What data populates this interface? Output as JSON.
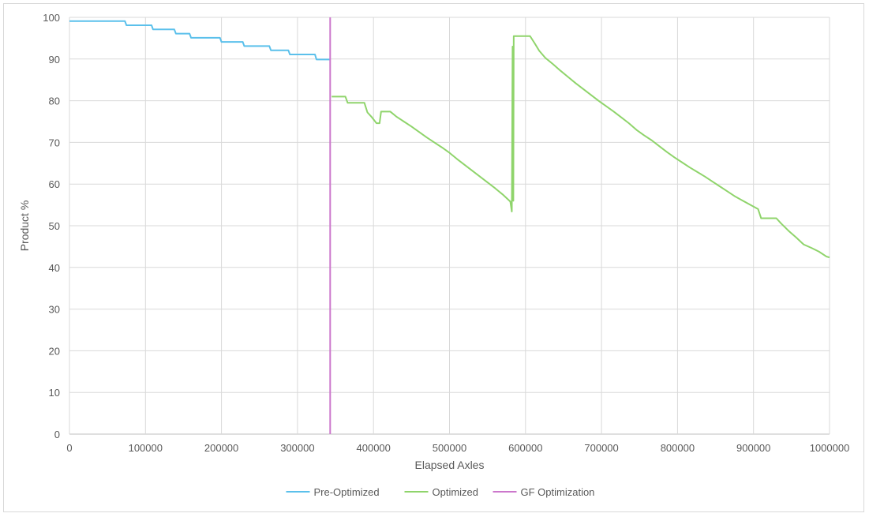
{
  "chart_data": {
    "type": "line",
    "xlabel": "Elapsed Axles",
    "ylabel": "Product %",
    "xlim": [
      0,
      1000000
    ],
    "ylim": [
      0,
      100
    ],
    "xticks": [
      0,
      100000,
      200000,
      300000,
      400000,
      500000,
      600000,
      700000,
      800000,
      900000,
      1000000
    ],
    "yticks": [
      0,
      10,
      20,
      30,
      40,
      50,
      60,
      70,
      80,
      90,
      100
    ],
    "grid": true,
    "legend_position": "bottom",
    "series": [
      {
        "name": "Pre-Optimized",
        "color": "#5bc0eb",
        "style": "step",
        "points": [
          [
            0,
            99.1
          ],
          [
            73000,
            99.1
          ],
          [
            75000,
            98.1
          ],
          [
            108000,
            98.1
          ],
          [
            110000,
            97.1
          ],
          [
            138000,
            97.1
          ],
          [
            140000,
            96.1
          ],
          [
            158000,
            96.1
          ],
          [
            160000,
            95.1
          ],
          [
            198000,
            95.1
          ],
          [
            200000,
            94.1
          ],
          [
            228000,
            94.1
          ],
          [
            230000,
            93.1
          ],
          [
            263000,
            93.1
          ],
          [
            265000,
            92.1
          ],
          [
            288000,
            92.1
          ],
          [
            290000,
            91.1
          ],
          [
            323000,
            91.1
          ],
          [
            325000,
            89.9
          ],
          [
            343000,
            89.9
          ]
        ]
      },
      {
        "name": "Optimized",
        "color": "#8fd46b",
        "style": "line",
        "points": [
          [
            345000,
            81.0
          ],
          [
            363000,
            81.0
          ],
          [
            366000,
            79.5
          ],
          [
            388000,
            79.5
          ],
          [
            392000,
            77.2
          ],
          [
            398000,
            76.0
          ],
          [
            404000,
            74.6
          ],
          [
            408000,
            74.6
          ],
          [
            410000,
            77.4
          ],
          [
            422000,
            77.4
          ],
          [
            430000,
            76.2
          ],
          [
            440000,
            75.0
          ],
          [
            450000,
            73.8
          ],
          [
            460000,
            72.5
          ],
          [
            470000,
            71.2
          ],
          [
            480000,
            70.0
          ],
          [
            490000,
            68.8
          ],
          [
            500000,
            67.5
          ],
          [
            510000,
            66.0
          ],
          [
            520000,
            64.6
          ],
          [
            530000,
            63.2
          ],
          [
            540000,
            61.8
          ],
          [
            550000,
            60.4
          ],
          [
            560000,
            59.0
          ],
          [
            570000,
            57.5
          ],
          [
            580000,
            55.8
          ],
          [
            582000,
            53.4
          ],
          [
            583000,
            93.0
          ],
          [
            584000,
            56.0
          ],
          [
            584500,
            95.5
          ],
          [
            606000,
            95.5
          ],
          [
            612000,
            93.8
          ],
          [
            618000,
            92.0
          ],
          [
            626000,
            90.3
          ],
          [
            636000,
            88.8
          ],
          [
            646000,
            87.2
          ],
          [
            656000,
            85.7
          ],
          [
            666000,
            84.2
          ],
          [
            676000,
            82.8
          ],
          [
            686000,
            81.4
          ],
          [
            696000,
            80.0
          ],
          [
            706000,
            78.7
          ],
          [
            716000,
            77.4
          ],
          [
            726000,
            76.0
          ],
          [
            736000,
            74.6
          ],
          [
            746000,
            73.0
          ],
          [
            756000,
            71.7
          ],
          [
            766000,
            70.5
          ],
          [
            776000,
            69.1
          ],
          [
            786000,
            67.7
          ],
          [
            796000,
            66.4
          ],
          [
            806000,
            65.2
          ],
          [
            816000,
            64.0
          ],
          [
            826000,
            62.9
          ],
          [
            836000,
            61.8
          ],
          [
            846000,
            60.6
          ],
          [
            856000,
            59.4
          ],
          [
            866000,
            58.2
          ],
          [
            876000,
            57.0
          ],
          [
            886000,
            56.0
          ],
          [
            896000,
            55.0
          ],
          [
            906000,
            54.0
          ],
          [
            910000,
            51.8
          ],
          [
            930000,
            51.8
          ],
          [
            936000,
            50.6
          ],
          [
            946000,
            48.8
          ],
          [
            956000,
            47.2
          ],
          [
            966000,
            45.5
          ],
          [
            976000,
            44.7
          ],
          [
            986000,
            43.8
          ],
          [
            996000,
            42.6
          ],
          [
            1000000,
            42.4
          ]
        ]
      },
      {
        "name": "GF Optimization",
        "color": "#cc77cc",
        "style": "vertical",
        "points": [
          [
            343000,
            0
          ],
          [
            343000,
            100
          ]
        ]
      }
    ]
  }
}
